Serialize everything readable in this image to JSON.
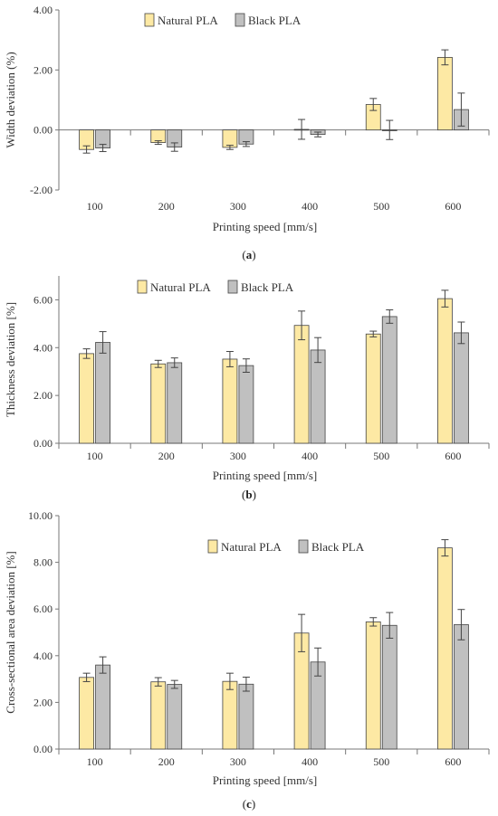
{
  "colors": {
    "natural": "#fde9a4",
    "black": "#c0c0c0",
    "stroke": "#444444",
    "axis": "#777777"
  },
  "chart_data": [
    {
      "type": "bar",
      "categories": [
        "100",
        "200",
        "300",
        "400",
        "500",
        "600"
      ],
      "series": [
        {
          "name": "Natural PLA",
          "values": [
            -0.65,
            -0.42,
            -0.58,
            0.02,
            0.85,
            2.42
          ],
          "errors": [
            0.12,
            0.06,
            0.07,
            0.33,
            0.2,
            0.25
          ]
        },
        {
          "name": "Black PLA",
          "values": [
            -0.6,
            -0.57,
            -0.47,
            -0.15,
            0.0,
            0.68
          ],
          "errors": [
            0.12,
            0.14,
            0.08,
            0.08,
            0.32,
            0.55
          ]
        }
      ],
      "ylabel": "Width deviation (%)",
      "xlabel": "Printing speed [mm/s]",
      "ylim": [
        -2.0,
        4.0
      ],
      "yticks": [
        "-2.00",
        "0.00",
        "2.00",
        "4.00"
      ],
      "caption_letter": "a",
      "legend": "top-center",
      "grid": false
    },
    {
      "type": "bar",
      "categories": [
        "100",
        "200",
        "300",
        "400",
        "500",
        "600"
      ],
      "series": [
        {
          "name": "Natural PLA",
          "values": [
            3.75,
            3.32,
            3.52,
            4.93,
            4.57,
            6.05
          ],
          "errors": [
            0.2,
            0.15,
            0.32,
            0.6,
            0.12,
            0.35
          ]
        },
        {
          "name": "Black PLA",
          "values": [
            4.22,
            3.37,
            3.25,
            3.9,
            5.3,
            4.62
          ],
          "errors": [
            0.45,
            0.2,
            0.28,
            0.52,
            0.28,
            0.45
          ]
        }
      ],
      "ylabel": "Thickness deviation [%]",
      "xlabel": "Printing speed [mm/s]",
      "ylim": [
        0.0,
        7.0
      ],
      "yticks": [
        "0.00",
        "2.00",
        "4.00",
        "6.00"
      ],
      "caption_letter": "b",
      "legend": "top-center",
      "grid": false
    },
    {
      "type": "bar",
      "categories": [
        "100",
        "200",
        "300",
        "400",
        "500",
        "600"
      ],
      "series": [
        {
          "name": "Natural PLA",
          "values": [
            3.07,
            2.88,
            2.9,
            4.97,
            5.45,
            8.62
          ],
          "errors": [
            0.18,
            0.18,
            0.35,
            0.8,
            0.18,
            0.35
          ]
        },
        {
          "name": "Black PLA",
          "values": [
            3.6,
            2.77,
            2.78,
            3.73,
            5.3,
            5.33
          ],
          "errors": [
            0.35,
            0.17,
            0.3,
            0.6,
            0.55,
            0.65
          ]
        }
      ],
      "ylabel": "Cross-sectional area deviation [%]",
      "xlabel": "Printing speed [mm/s]",
      "ylim": [
        0.0,
        10.0
      ],
      "yticks": [
        "0.00",
        "2.00",
        "4.00",
        "6.00",
        "8.00",
        "10.00"
      ],
      "caption_letter": "c",
      "legend": "top-center",
      "grid": false
    }
  ]
}
